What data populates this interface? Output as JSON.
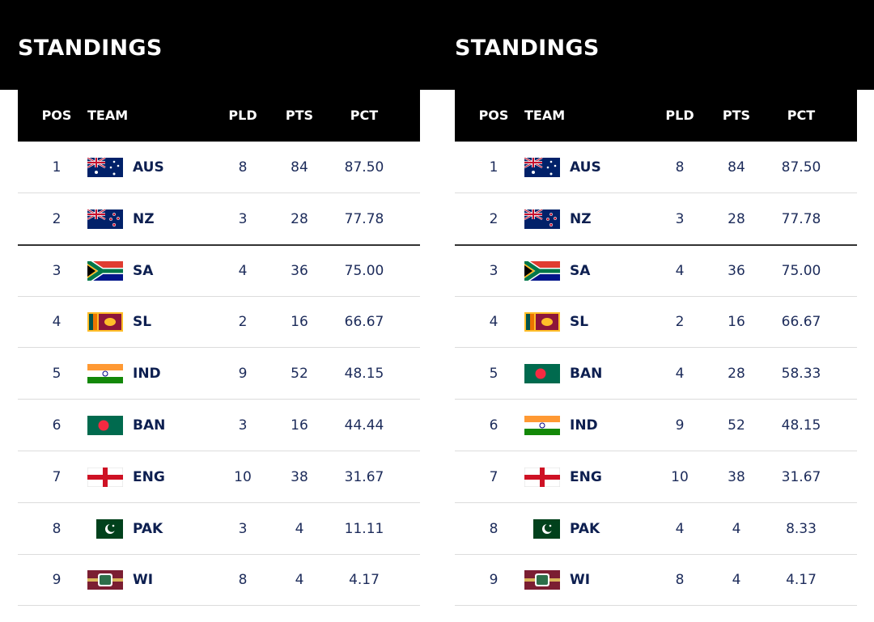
{
  "panels": [
    {
      "title": "STANDINGS",
      "headers": [
        "POS",
        "TEAM",
        "PLD",
        "PTS",
        "PCT"
      ],
      "rows": [
        [
          "1",
          "AUS",
          "8",
          "84",
          "87.50"
        ],
        [
          "2",
          "NZ",
          "3",
          "28",
          "77.78"
        ],
        [
          "3",
          "SA",
          "4",
          "36",
          "75.00"
        ],
        [
          "4",
          "SL",
          "2",
          "16",
          "66.67"
        ],
        [
          "5",
          "IND",
          "9",
          "52",
          "48.15"
        ],
        [
          "6",
          "BAN",
          "3",
          "16",
          "44.44"
        ],
        [
          "7",
          "ENG",
          "10",
          "38",
          "31.67"
        ],
        [
          "8",
          "PAK",
          "3",
          "4",
          "11.11"
        ],
        [
          "9",
          "WI",
          "8",
          "4",
          "4.17"
        ]
      ]
    },
    {
      "title": "STANDINGS",
      "headers": [
        "POS",
        "TEAM",
        "PLD",
        "PTS",
        "PCT"
      ],
      "rows": [
        [
          "1",
          "AUS",
          "8",
          "84",
          "87.50"
        ],
        [
          "2",
          "NZ",
          "3",
          "28",
          "77.78"
        ],
        [
          "3",
          "SA",
          "4",
          "36",
          "75.00"
        ],
        [
          "4",
          "SL",
          "2",
          "16",
          "66.67"
        ],
        [
          "5",
          "BAN",
          "4",
          "28",
          "58.33"
        ],
        [
          "6",
          "IND",
          "9",
          "52",
          "48.15"
        ],
        [
          "7",
          "ENG",
          "10",
          "38",
          "31.67"
        ],
        [
          "8",
          "PAK",
          "4",
          "4",
          "8.33"
        ],
        [
          "9",
          "WI",
          "8",
          "4",
          "4.17"
        ]
      ]
    }
  ]
}
